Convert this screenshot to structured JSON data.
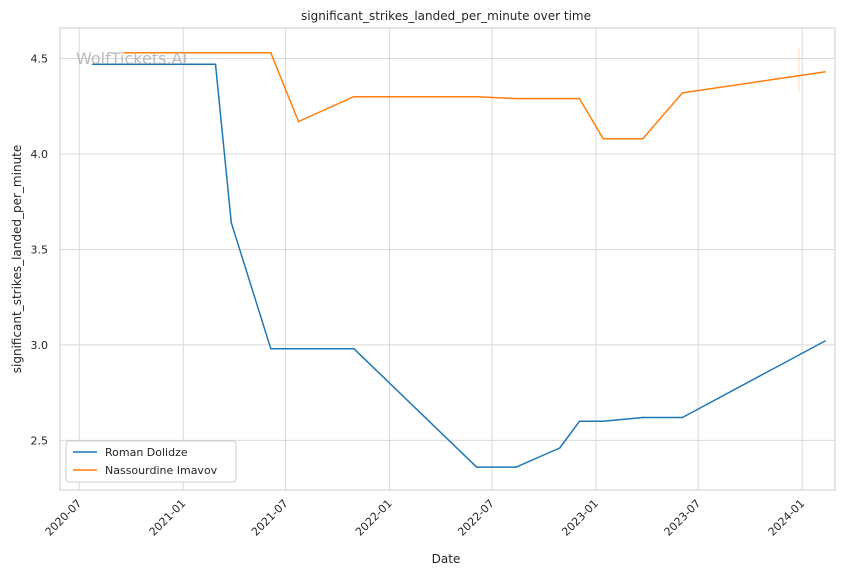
{
  "chart_data": {
    "type": "line",
    "title": "significant_strikes_landed_per_minute over time",
    "xlabel": "Date",
    "ylabel": "significant_strikes_landed_per_minute",
    "watermark": "WolfTickets.AI",
    "xlim": [
      "2020-05-28",
      "2024-02-28"
    ],
    "ylim": [
      2.24,
      4.66
    ],
    "x_ticks": [
      "2020-07",
      "2021-01",
      "2021-07",
      "2022-01",
      "2022-07",
      "2023-01",
      "2023-07",
      "2024-01"
    ],
    "y_ticks": [
      2.5,
      3.0,
      3.5,
      4.0,
      4.5
    ],
    "y_tick_labels": [
      "2.5",
      "3.0",
      "3.5",
      "4.0",
      "4.5"
    ],
    "grid": true,
    "legend_position": "lower-left",
    "series": [
      {
        "name": "Roman Dolidze",
        "color": "#1f77b4",
        "points": [
          {
            "x": "2020-07-25",
            "y": 4.47
          },
          {
            "x": "2021-02-27",
            "y": 4.47
          },
          {
            "x": "2021-03-27",
            "y": 3.64
          },
          {
            "x": "2021-06-05",
            "y": 2.98
          },
          {
            "x": "2021-10-30",
            "y": 2.98
          },
          {
            "x": "2022-06-04",
            "y": 2.36
          },
          {
            "x": "2022-08-13",
            "y": 2.36
          },
          {
            "x": "2022-10-29",
            "y": 2.46
          },
          {
            "x": "2022-12-03",
            "y": 2.6
          },
          {
            "x": "2023-01-14",
            "y": 2.6
          },
          {
            "x": "2023-03-25",
            "y": 2.62
          },
          {
            "x": "2023-06-03",
            "y": 2.62
          },
          {
            "x": "2024-02-10",
            "y": 3.02
          }
        ]
      },
      {
        "name": "Nassourdine Imavov",
        "color": "#ff7f0e",
        "points": [
          {
            "x": "2020-09-19",
            "y": 4.53
          },
          {
            "x": "2021-06-05",
            "y": 4.53
          },
          {
            "x": "2021-07-24",
            "y": 4.17
          },
          {
            "x": "2021-10-30",
            "y": 4.3
          },
          {
            "x": "2022-06-04",
            "y": 4.3
          },
          {
            "x": "2022-08-13",
            "y": 4.29
          },
          {
            "x": "2022-12-03",
            "y": 4.29
          },
          {
            "x": "2023-01-14",
            "y": 4.08
          },
          {
            "x": "2023-03-25",
            "y": 4.08
          },
          {
            "x": "2023-06-03",
            "y": 4.32
          },
          {
            "x": "2024-02-10",
            "y": 4.43
          }
        ]
      }
    ]
  }
}
